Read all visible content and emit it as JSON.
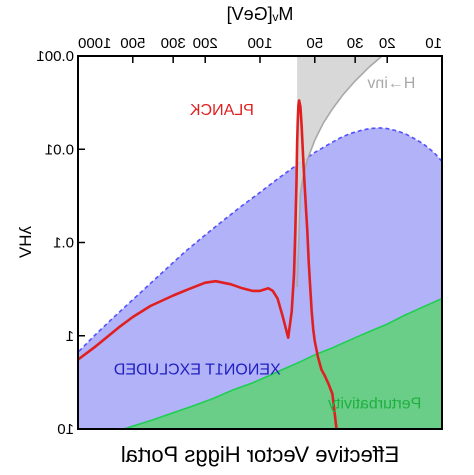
{
  "chart_data": {
    "type": "area",
    "title": "Effective Vector Higgs Portal",
    "xlabel": "M_V[GeV]",
    "xlabel_display": "Mᵥ[GeV]",
    "ylabel": "λ_HV",
    "ylabel_display": "λHV",
    "xscale": "log",
    "yscale": "log",
    "y_inverted": true,
    "mirrored_horizontally": true,
    "xlim": [
      10,
      1000
    ],
    "ylim": [
      0.001,
      10
    ],
    "x_ticks": [
      {
        "value": 10,
        "label": "10"
      },
      {
        "value": 20,
        "label": "20"
      },
      {
        "value": 30,
        "label": "30"
      },
      {
        "value": 50,
        "label": "50"
      },
      {
        "value": 100,
        "label": "100"
      },
      {
        "value": 200,
        "label": "200"
      },
      {
        "value": 300,
        "label": "300"
      },
      {
        "value": 500,
        "label": "500"
      },
      {
        "value": 1000,
        "label": "1000"
      }
    ],
    "y_ticks": [
      {
        "value": 0.001,
        "label": "0.001"
      },
      {
        "value": 0.01,
        "label": "0.01"
      },
      {
        "value": 0.1,
        "label": "0.1"
      },
      {
        "value": 1,
        "label": "1"
      },
      {
        "value": 10,
        "label": "10"
      }
    ],
    "grid": false,
    "series": [
      {
        "name": "XENON1T EXCLUDED",
        "label_display": "XENON1T EXCLUDED",
        "kind": "region",
        "color": "#5050ff",
        "fill": "#aaaaf8",
        "edge_style": "dashed",
        "boundary": {
          "x": [
            10,
            11,
            12,
            13,
            14,
            16,
            18,
            20,
            22,
            25,
            28,
            32,
            36,
            40,
            45,
            50,
            55,
            60,
            70,
            80,
            100,
            130,
            160,
            200,
            260,
            330,
            420,
            520,
            650,
            800,
            1000
          ],
          "y": [
            0.0135,
            0.011,
            0.0095,
            0.0085,
            0.0078,
            0.0068,
            0.0063,
            0.006,
            0.0059,
            0.006,
            0.0063,
            0.0068,
            0.0075,
            0.0084,
            0.0096,
            0.0108,
            0.0123,
            0.0138,
            0.0172,
            0.0208,
            0.029,
            0.0425,
            0.0585,
            0.083,
            0.127,
            0.195,
            0.3,
            0.44,
            0.66,
            0.97,
            1.5
          ]
        }
      },
      {
        "name": "Perturbativity",
        "label_display": "Perturbativity",
        "kind": "region",
        "color": "#1fcf50",
        "fill": "#62d07c",
        "boundary": {
          "x": [
            10,
            13,
            16,
            20,
            25,
            30,
            40,
            50,
            60,
            75,
            90,
            110,
            140,
            180,
            230,
            300,
            390,
            500,
            650,
            800,
            1000
          ],
          "y": [
            0.4,
            0.5,
            0.6,
            0.75,
            0.9,
            1.05,
            1.35,
            1.6,
            1.9,
            2.3,
            2.7,
            3.2,
            3.8,
            4.7,
            5.6,
            6.7,
            8.0,
            9.3,
            11.0,
            12.5,
            14.5
          ]
        }
      },
      {
        "name": "H→inv",
        "label_display": "H→inv",
        "kind": "region",
        "color": "#a8a8a8",
        "fill": "#d4d4d4",
        "x_max": 62.5,
        "boundary": {
          "x": [
            10,
            20,
            25,
            30,
            35,
            40,
            45,
            50,
            55,
            58,
            60,
            62.5
          ],
          "y": [
            0.00045,
            0.0009,
            0.0013,
            0.00185,
            0.0026,
            0.0037,
            0.0053,
            0.008,
            0.013,
            0.02,
            0.03,
            0.3
          ]
        }
      },
      {
        "name": "PLANCK",
        "label_display": "PLANCK",
        "kind": "line",
        "color": "#e02020",
        "points": {
          "x": [
            38,
            40,
            42,
            44,
            46,
            48,
            50,
            51,
            52,
            53,
            54,
            55,
            56,
            57,
            58,
            59,
            60,
            61,
            61.5,
            62,
            62.5,
            63,
            64,
            65,
            67,
            70,
            75,
            80,
            85,
            90,
            100,
            110,
            125,
            145,
            160,
            175,
            200,
            250,
            300,
            400,
            500,
            600,
            700,
            800,
            1000
          ],
          "y": [
            10,
            4.2,
            3.3,
            2.7,
            2.3,
            1.7,
            1.15,
            0.85,
            0.55,
            0.3,
            0.16,
            0.075,
            0.04,
            0.022,
            0.012,
            0.0058,
            0.0035,
            0.003,
            0.0034,
            0.0048,
            0.009,
            0.022,
            0.075,
            0.22,
            0.55,
            1.05,
            0.62,
            0.4,
            0.33,
            0.31,
            0.33,
            0.33,
            0.31,
            0.28,
            0.27,
            0.26,
            0.27,
            0.32,
            0.37,
            0.48,
            0.63,
            0.82,
            1.05,
            1.3,
            1.8
          ]
        }
      }
    ],
    "annotations": [
      {
        "text": "H→inv",
        "x": 14,
        "y": 0.0022,
        "color": "#a8a8a8"
      },
      {
        "text": "PLANCK",
        "x": 108,
        "y": 0.0043,
        "color": "#e02020"
      },
      {
        "text": "XENON1T EXCLUDED",
        "x": 77,
        "y": 2.6,
        "color": "#2020c0"
      },
      {
        "text": "Perturbativity",
        "x": 13,
        "y": 6.0,
        "color": "#20b040"
      }
    ]
  }
}
